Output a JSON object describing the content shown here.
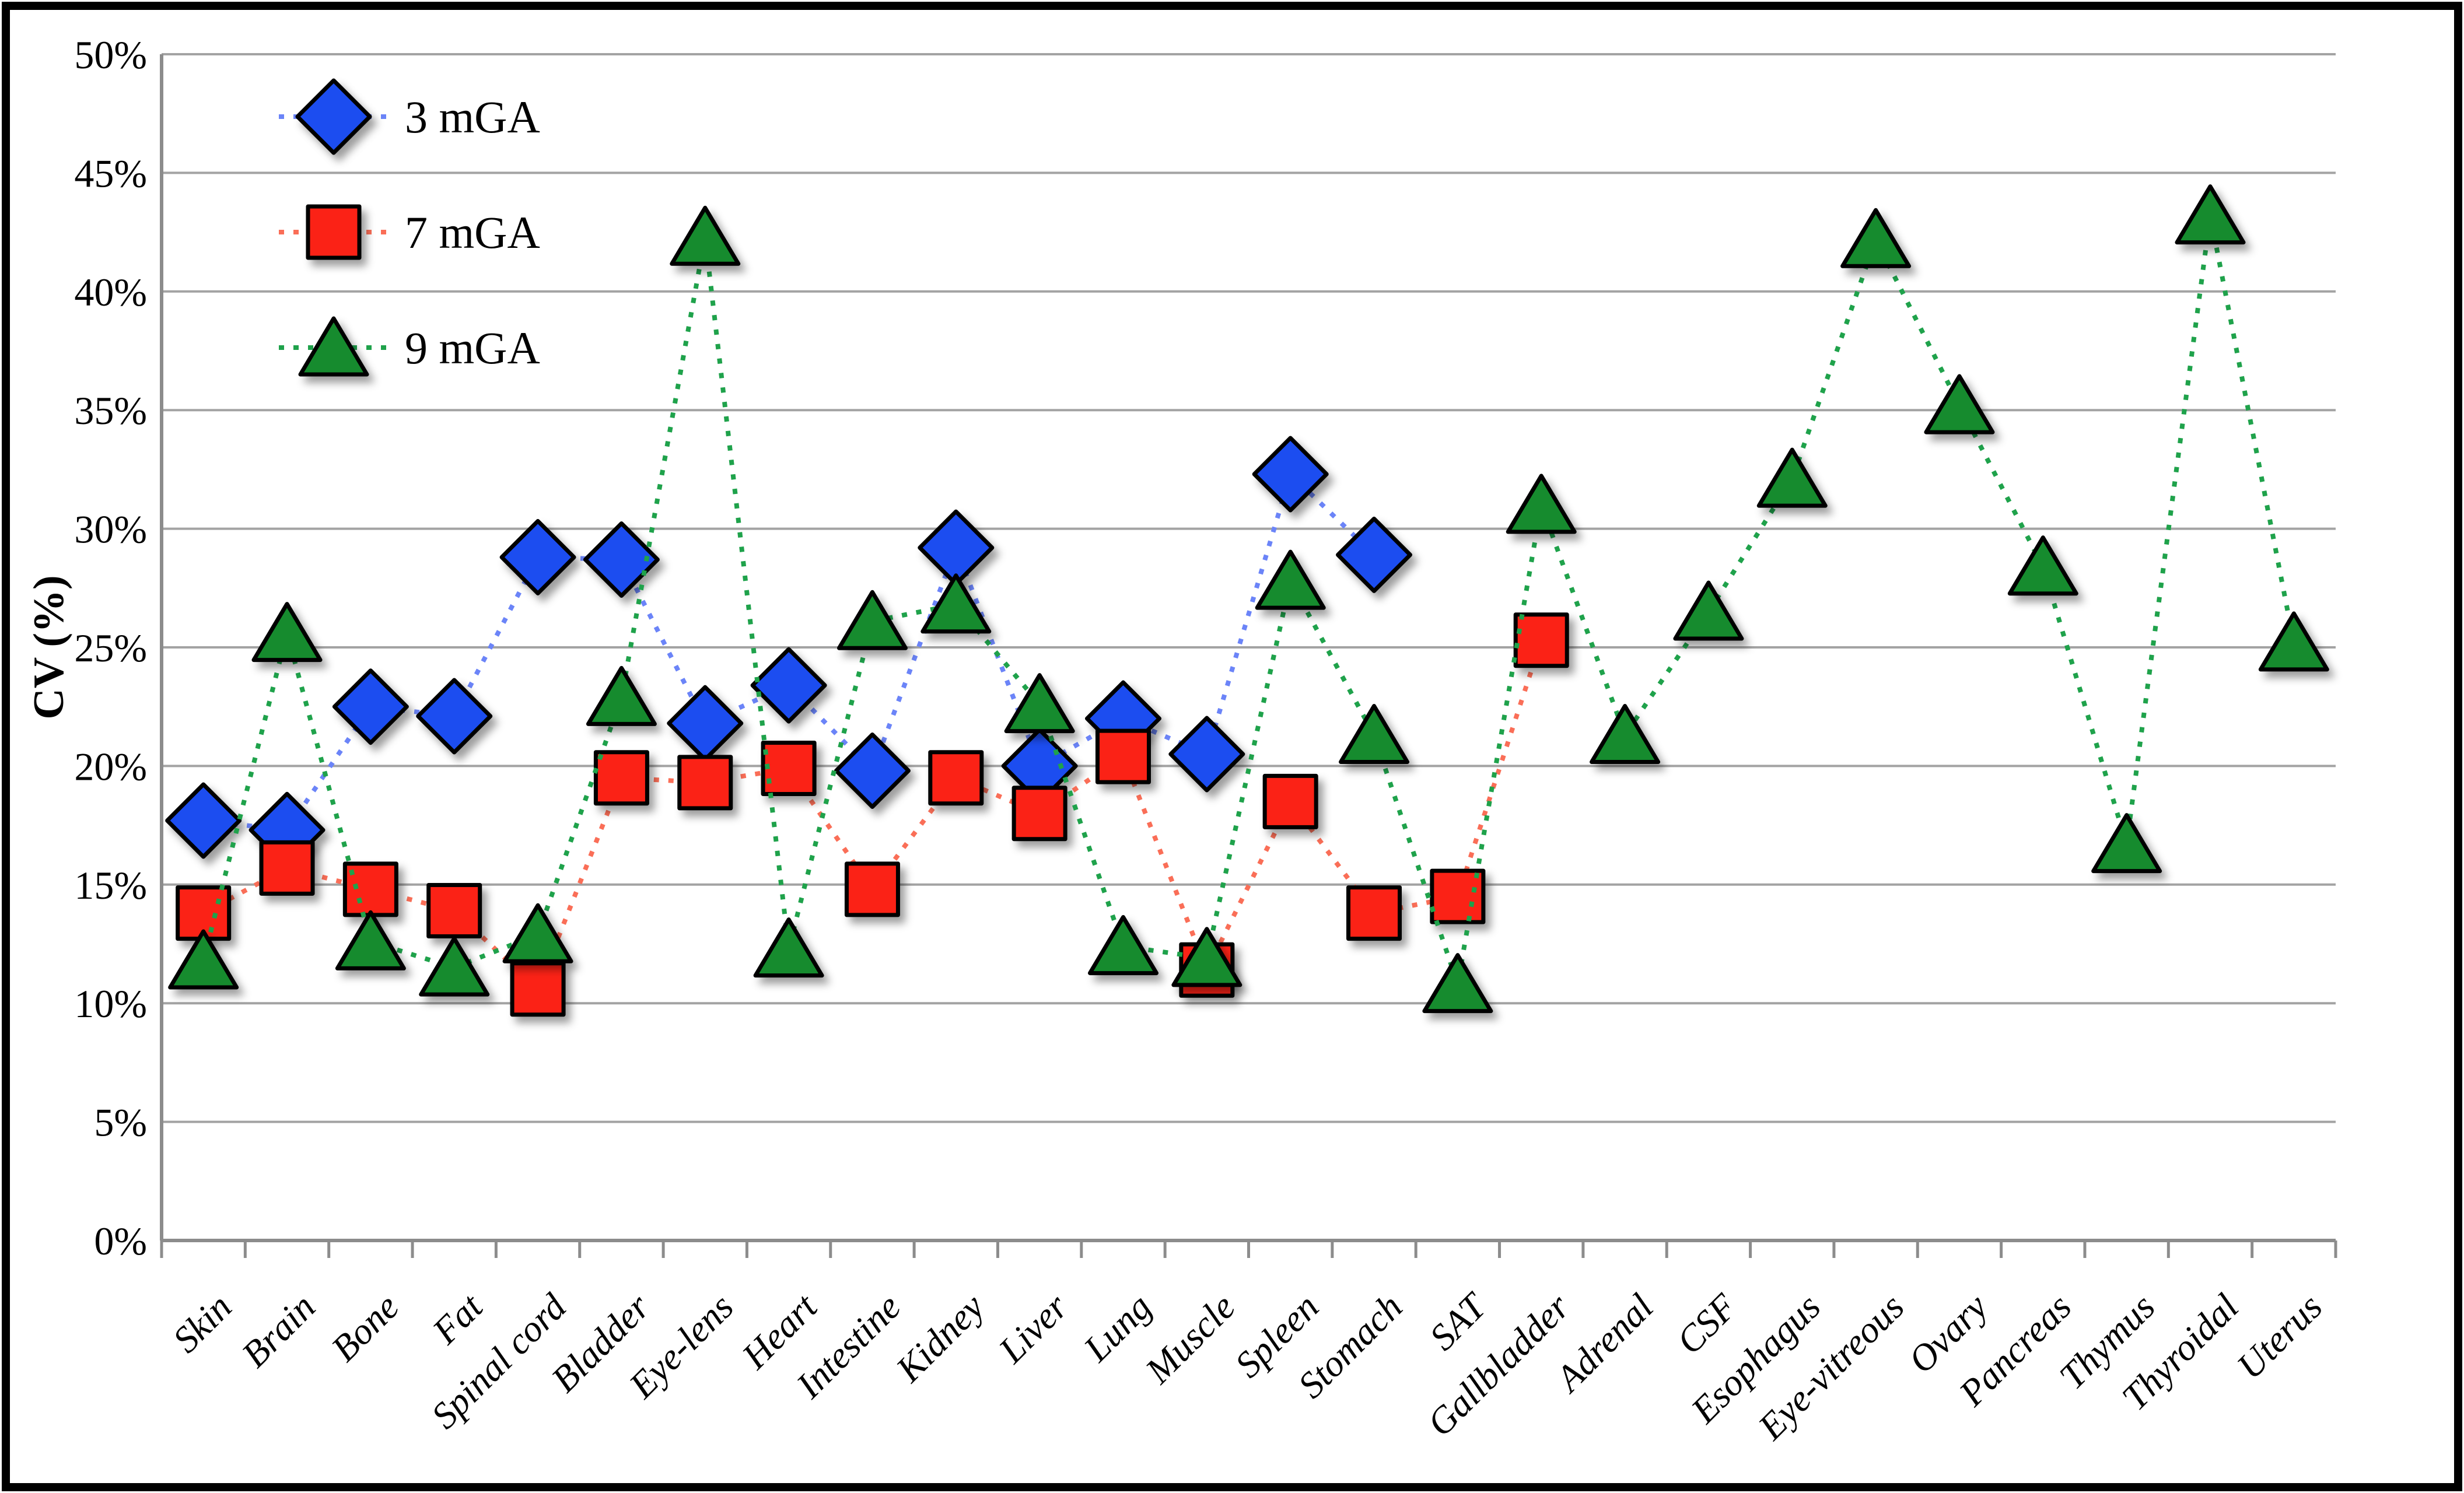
{
  "figure": {
    "background": "#ffffff",
    "border_color": "#000000",
    "gridline_color": "#a3a3a3",
    "axis_color": "#8c8c8c"
  },
  "chart_data": {
    "type": "line",
    "title": "",
    "xlabel": "",
    "ylabel": "CV (%)",
    "ylim": [
      0,
      50
    ],
    "grid": "horizontal-on",
    "legend_position": "top-left-inside",
    "ytick_labels": [
      "0%",
      "5%",
      "10%",
      "15%",
      "20%",
      "25%",
      "30%",
      "35%",
      "40%",
      "45%",
      "50%"
    ],
    "categories": [
      "Skin",
      "Brain",
      "Bone",
      "Fat",
      "Spinal cord",
      "Bladder",
      "Eye-lens",
      "Heart",
      "Intestine",
      "Kidney",
      "Liver",
      "Lung",
      "Muscle",
      "Spleen",
      "Stomach",
      "SAT",
      "Gallbladder",
      "Adrenal",
      "CSF",
      "Esophagus",
      "Eye-vitreous",
      "Ovary",
      "Pancreas",
      "Thymus",
      "Thyroidal",
      "Uterus"
    ],
    "series": [
      {
        "name": "3 mGA",
        "marker": "diamond",
        "marker_color": "#1b4ef0",
        "line_color": "#6b84f8",
        "values": [
          17.7,
          17.3,
          22.5,
          22.1,
          28.8,
          28.7,
          21.8,
          23.4,
          19.8,
          29.2,
          20.0,
          22.0,
          20.5,
          32.3,
          28.9,
          null,
          null,
          null,
          null,
          null,
          null,
          null,
          null,
          null,
          null,
          null
        ]
      },
      {
        "name": "7 mGA",
        "marker": "square",
        "marker_color": "#fb2312",
        "line_color": "#fa6e57",
        "values": [
          13.8,
          15.7,
          14.8,
          13.9,
          10.6,
          19.5,
          19.3,
          19.9,
          14.8,
          19.5,
          18.0,
          20.4,
          11.4,
          18.5,
          13.8,
          14.5,
          25.3,
          null,
          null,
          null,
          null,
          null,
          null,
          null,
          null,
          null
        ]
      },
      {
        "name": "9 mGA",
        "marker": "triangle",
        "marker_color": "#168b2e",
        "line_color": "#1fa24b",
        "values": [
          11.8,
          25.6,
          12.6,
          11.5,
          12.9,
          22.9,
          42.3,
          12.3,
          26.1,
          26.8,
          22.6,
          12.4,
          11.9,
          27.8,
          21.3,
          10.8,
          31.0,
          21.3,
          26.5,
          32.1,
          42.2,
          35.2,
          28.4,
          16.7,
          43.2,
          25.2
        ]
      }
    ]
  }
}
